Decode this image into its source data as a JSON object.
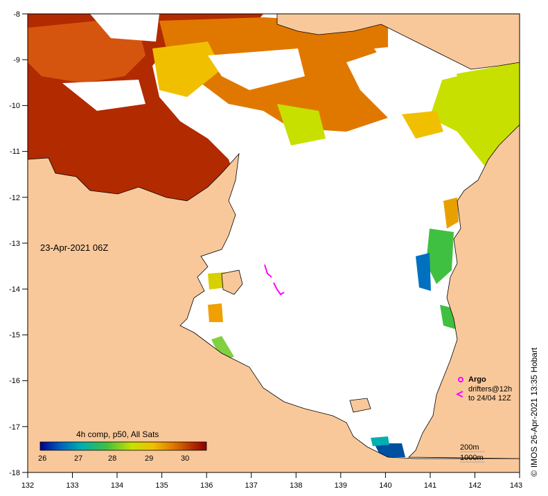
{
  "map": {
    "date_label": "23-Apr-2021 06Z",
    "x_ticks": [
      "132",
      "133",
      "134",
      "135",
      "136",
      "137",
      "138",
      "139",
      "140",
      "141",
      "142",
      "143"
    ],
    "y_ticks": [
      "-8",
      "-9",
      "-10",
      "-11",
      "-12",
      "-13",
      "-14",
      "-15",
      "-16",
      "-17",
      "-18"
    ],
    "colors": {
      "land": "#f9c89a",
      "no_data": "#ffffff",
      "hot": "#b22a00",
      "warm": "#e07800",
      "mid": "#f0c000",
      "mild": "#c8e000",
      "cool": "#40c040",
      "cold": "#0070c0",
      "coldest": "#002080",
      "argo": "#ff00ff"
    }
  },
  "colorbar": {
    "title": "4h comp, p50, All Sats",
    "ticks": [
      "26",
      "27",
      "28",
      "29",
      "30"
    ],
    "stops": [
      "#00008b",
      "#0060c0",
      "#00b0b0",
      "#40c040",
      "#c8e000",
      "#f0c000",
      "#e07800",
      "#b22a00",
      "#8b0000"
    ]
  },
  "legend": {
    "argo_label": "Argo",
    "drifters_label": "drifters@12h",
    "drifters_range": "to 24/04 12Z",
    "contour_200": "200m",
    "contour_1000": "1000m"
  },
  "credit": {
    "symbol": "©",
    "text": "IMOS 26-Apr-2021 13:35 Hobart"
  }
}
